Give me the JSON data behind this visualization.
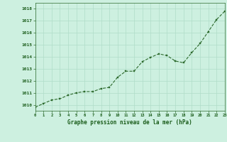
{
  "x": [
    0,
    1,
    2,
    3,
    4,
    5,
    6,
    7,
    8,
    9,
    10,
    11,
    12,
    13,
    14,
    15,
    16,
    17,
    18,
    19,
    20,
    21,
    22,
    23
  ],
  "y": [
    1009.8,
    1010.1,
    1010.4,
    1010.5,
    1010.8,
    1011.0,
    1011.1,
    1011.1,
    1011.35,
    1011.45,
    1012.3,
    1012.8,
    1012.8,
    1013.6,
    1013.95,
    1014.25,
    1014.1,
    1013.65,
    1013.5,
    1014.35,
    1015.1,
    1016.1,
    1017.1,
    1017.8
  ],
  "xlim": [
    0,
    23
  ],
  "ylim": [
    1009.5,
    1018.5
  ],
  "yticks": [
    1010,
    1011,
    1012,
    1013,
    1014,
    1015,
    1016,
    1017,
    1018
  ],
  "xticks": [
    0,
    1,
    2,
    3,
    4,
    5,
    6,
    7,
    8,
    9,
    10,
    11,
    12,
    13,
    14,
    15,
    16,
    17,
    18,
    19,
    20,
    21,
    22,
    23
  ],
  "xlabel": "Graphe pression niveau de la mer (hPa)",
  "line_color": "#2d6a2d",
  "marker_color": "#2d6a2d",
  "bg_color": "#cdf0e0",
  "grid_color": "#b0dcc8",
  "tick_label_color": "#1a5c1a",
  "xlabel_color": "#1a5c1a"
}
